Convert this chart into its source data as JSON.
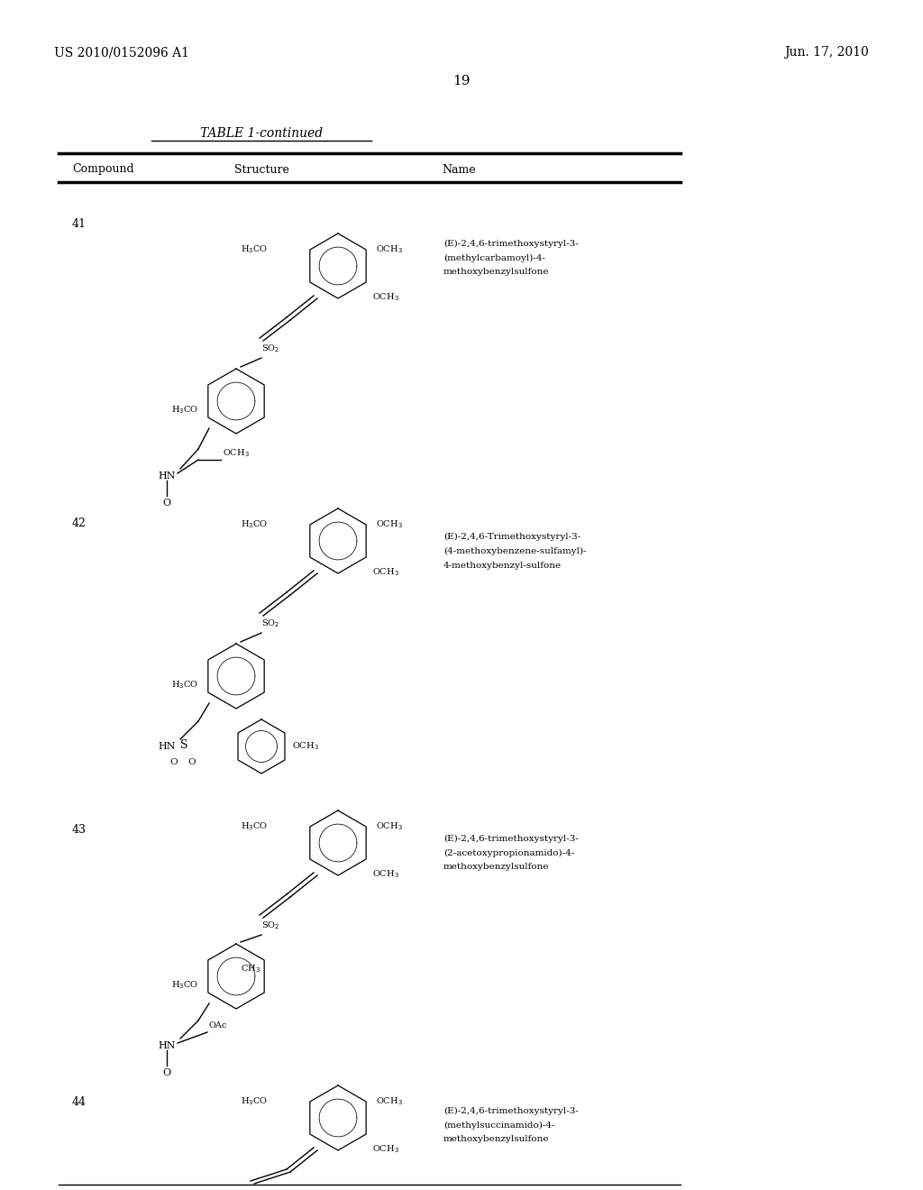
{
  "background_color": "#ffffff",
  "page_number": "19",
  "patent_left": "US 2010/0152096 A1",
  "patent_right": "Jun. 17, 2010",
  "table_title": "TABLE 1-continued",
  "col_headers": [
    "Compound",
    "Structure",
    "Name"
  ],
  "compounds": [
    {
      "number": "41",
      "name_lines": [
        "(E)-2,4,6-trimethoxystyryl-3-",
        "(methylcarbamoyl)-4-",
        "methoxybenzylsulfone"
      ]
    },
    {
      "number": "42",
      "name_lines": [
        "(E)-2,4,6-Trimethoxystyryl-3-",
        "(4-methoxybenzene-sulfamyl)-",
        "4-methoxybenzyl-sulfone"
      ]
    },
    {
      "number": "43",
      "name_lines": [
        "(E)-2,4,6-trimethoxystyryl-3-",
        "(2-acetoxypropionamido)-4-",
        "methoxybenzylsulfone"
      ]
    },
    {
      "number": "44",
      "name_lines": [
        "(E)-2,4,6-trimethoxystyryl-3-",
        "(methylsuccinamido)-4-",
        "methoxybenzylsulfone"
      ]
    }
  ],
  "text_color": "#000000",
  "line_color": "#000000"
}
